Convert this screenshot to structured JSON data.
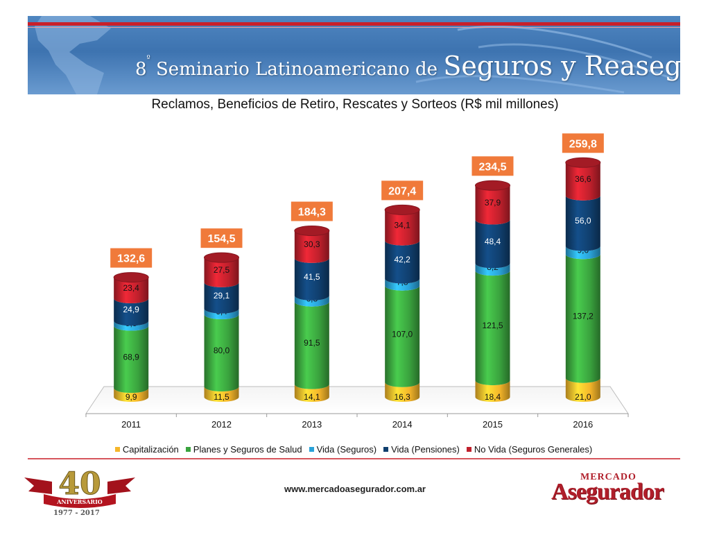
{
  "banner": {
    "title_prefix": "8",
    "title_sup": "º",
    "title_small": " Seminario Latinoamericano de ",
    "title_big": "Seguros y Reaseguros"
  },
  "colors": {
    "capitalizacion": "#f5b62a",
    "planes": "#3aa33e",
    "vida_seguros": "#2aa2d8",
    "vida_pensiones": "#103f6e",
    "no_vida": "#c0202c",
    "total_box": "#f07a3a"
  },
  "chart_data": {
    "type": "bar",
    "stacked": true,
    "title": "Reclamos, Beneficios de Retiro, Rescates y Sorteos (R$ mil millones)",
    "categories": [
      "2011",
      "2012",
      "2013",
      "2014",
      "2015",
      "2016"
    ],
    "series": [
      {
        "name": "Capitalización",
        "values": [
          9.9,
          11.5,
          14.1,
          16.3,
          18.4,
          21.0
        ],
        "labels": [
          "9,9",
          "11,5",
          "14,1",
          "16,3",
          "18,4",
          "21,0"
        ]
      },
      {
        "name": "Planes y Seguros de Salud",
        "values": [
          68.9,
          80.0,
          91.5,
          107.0,
          121.5,
          137.2
        ],
        "labels": [
          "68,9",
          "80,0",
          "91,5",
          "107,0",
          "121,5",
          "137,2"
        ]
      },
      {
        "name": "Vida (Seguros)",
        "values": [
          5.5,
          6.4,
          6.8,
          7.8,
          8.2,
          9.0
        ],
        "labels": [
          "5,5",
          "6,4",
          "6,8",
          "7,8",
          "8,2",
          "9,0"
        ]
      },
      {
        "name": "Vida (Pensiones)",
        "values": [
          24.9,
          29.1,
          41.5,
          42.2,
          48.4,
          56.0
        ],
        "labels": [
          "24,9",
          "29,1",
          "41,5",
          "42,2",
          "48,4",
          "56,0"
        ]
      },
      {
        "name": "No Vida (Seguros Generales)",
        "values": [
          23.4,
          27.5,
          30.3,
          34.1,
          37.9,
          36.6
        ],
        "labels": [
          "23,4",
          "27,5",
          "30,3",
          "34,1",
          "37,9",
          "36,6"
        ]
      }
    ],
    "totals": [
      132.6,
      154.5,
      184.3,
      207.4,
      234.5,
      259.8
    ],
    "total_labels": [
      "132,6",
      "154,5",
      "184,3",
      "207,4",
      "234,5",
      "259,8"
    ],
    "legend_position": "bottom",
    "grid": false
  },
  "footer": {
    "url": "www.mercadoasegurador.com.ar",
    "logo_left_number": "40",
    "logo_left_ribbon": "ANIVERSARIO",
    "logo_left_years": "1977 - 2017",
    "logo_right_top": "MERCADO",
    "logo_right_bottom": "Asegurador"
  }
}
